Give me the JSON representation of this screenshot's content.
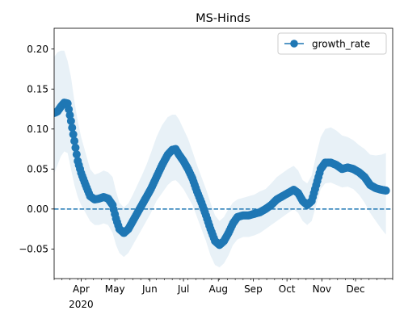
{
  "chart_data": {
    "type": "line",
    "title": "MS-Hinds",
    "xlabel": "",
    "ylabel": "",
    "x_range": [
      "2020-03-08",
      "2021-01-03"
    ],
    "ylim": [
      -0.087,
      0.226
    ],
    "grid": false,
    "legend": {
      "placement": "top-right",
      "entries": [
        "growth_rate"
      ]
    },
    "x_ticks": [
      {
        "date": "2020-04-01",
        "label": "Apr",
        "sublabel": "2020"
      },
      {
        "date": "2020-05-01",
        "label": "May"
      },
      {
        "date": "2020-06-01",
        "label": "Jun"
      },
      {
        "date": "2020-07-01",
        "label": "Jul"
      },
      {
        "date": "2020-08-01",
        "label": "Aug"
      },
      {
        "date": "2020-09-01",
        "label": "Sep"
      },
      {
        "date": "2020-10-01",
        "label": "Oct"
      },
      {
        "date": "2020-11-01",
        "label": "Nov"
      },
      {
        "date": "2020-12-01",
        "label": "Dec"
      }
    ],
    "y_ticks": [
      {
        "value": 0.2,
        "label": "0.20"
      },
      {
        "value": 0.15,
        "label": "0.15"
      },
      {
        "value": 0.1,
        "label": "0.10"
      },
      {
        "value": 0.05,
        "label": "0.05"
      },
      {
        "value": 0.0,
        "label": "0.00"
      },
      {
        "value": -0.05,
        "label": "−0.05"
      }
    ],
    "reference_line": {
      "y": 0.0,
      "style": "dashed"
    },
    "series": [
      {
        "name": "growth_rate",
        "color": "#1f77b4",
        "band_color": "#1f77b4",
        "band_opacity": 0.1,
        "points": [
          {
            "x": "2020-03-08",
            "y": 0.12,
            "lo": 0.045,
            "hi": 0.19
          },
          {
            "x": "2020-03-11",
            "y": 0.122,
            "lo": 0.055,
            "hi": 0.196
          },
          {
            "x": "2020-03-14",
            "y": 0.128,
            "lo": 0.066,
            "hi": 0.198
          },
          {
            "x": "2020-03-17",
            "y": 0.133,
            "lo": 0.072,
            "hi": 0.198
          },
          {
            "x": "2020-03-20",
            "y": 0.132,
            "lo": 0.07,
            "hi": 0.185
          },
          {
            "x": "2020-03-23",
            "y": 0.11,
            "lo": 0.05,
            "hi": 0.165
          },
          {
            "x": "2020-03-26",
            "y": 0.085,
            "lo": 0.03,
            "hi": 0.135
          },
          {
            "x": "2020-03-29",
            "y": 0.06,
            "lo": 0.015,
            "hi": 0.11
          },
          {
            "x": "2020-04-01",
            "y": 0.045,
            "lo": 0.005,
            "hi": 0.09
          },
          {
            "x": "2020-04-05",
            "y": 0.03,
            "lo": -0.005,
            "hi": 0.07
          },
          {
            "x": "2020-04-09",
            "y": 0.016,
            "lo": -0.015,
            "hi": 0.05
          },
          {
            "x": "2020-04-13",
            "y": 0.012,
            "lo": -0.02,
            "hi": 0.043
          },
          {
            "x": "2020-04-17",
            "y": 0.013,
            "lo": -0.02,
            "hi": 0.045
          },
          {
            "x": "2020-04-21",
            "y": 0.015,
            "lo": -0.018,
            "hi": 0.048
          },
          {
            "x": "2020-04-25",
            "y": 0.013,
            "lo": -0.02,
            "hi": 0.046
          },
          {
            "x": "2020-04-29",
            "y": 0.005,
            "lo": -0.03,
            "hi": 0.04
          },
          {
            "x": "2020-05-02",
            "y": -0.012,
            "lo": -0.045,
            "hi": 0.022
          },
          {
            "x": "2020-05-05",
            "y": -0.025,
            "lo": -0.055,
            "hi": 0.008
          },
          {
            "x": "2020-05-09",
            "y": -0.03,
            "lo": -0.06,
            "hi": 0.002
          },
          {
            "x": "2020-05-13",
            "y": -0.025,
            "lo": -0.055,
            "hi": 0.007
          },
          {
            "x": "2020-05-17",
            "y": -0.015,
            "lo": -0.045,
            "hi": 0.018
          },
          {
            "x": "2020-05-21",
            "y": -0.005,
            "lo": -0.035,
            "hi": 0.03
          },
          {
            "x": "2020-05-25",
            "y": 0.005,
            "lo": -0.025,
            "hi": 0.042
          },
          {
            "x": "2020-05-29",
            "y": 0.015,
            "lo": -0.015,
            "hi": 0.055
          },
          {
            "x": "2020-06-02",
            "y": 0.025,
            "lo": -0.005,
            "hi": 0.07
          },
          {
            "x": "2020-06-07",
            "y": 0.04,
            "lo": 0.01,
            "hi": 0.09
          },
          {
            "x": "2020-06-12",
            "y": 0.055,
            "lo": 0.02,
            "hi": 0.105
          },
          {
            "x": "2020-06-17",
            "y": 0.068,
            "lo": 0.03,
            "hi": 0.115
          },
          {
            "x": "2020-06-21",
            "y": 0.074,
            "lo": 0.035,
            "hi": 0.118
          },
          {
            "x": "2020-06-24",
            "y": 0.075,
            "lo": 0.036,
            "hi": 0.118
          },
          {
            "x": "2020-06-27",
            "y": 0.068,
            "lo": 0.032,
            "hi": 0.112
          },
          {
            "x": "2020-07-01",
            "y": 0.06,
            "lo": 0.025,
            "hi": 0.1
          },
          {
            "x": "2020-07-05",
            "y": 0.05,
            "lo": 0.015,
            "hi": 0.088
          },
          {
            "x": "2020-07-09",
            "y": 0.038,
            "lo": 0.005,
            "hi": 0.072
          },
          {
            "x": "2020-07-13",
            "y": 0.022,
            "lo": -0.01,
            "hi": 0.055
          },
          {
            "x": "2020-07-17",
            "y": 0.008,
            "lo": -0.025,
            "hi": 0.04
          },
          {
            "x": "2020-07-21",
            "y": -0.008,
            "lo": -0.04,
            "hi": 0.025
          },
          {
            "x": "2020-07-25",
            "y": -0.025,
            "lo": -0.058,
            "hi": 0.008
          },
          {
            "x": "2020-07-29",
            "y": -0.04,
            "lo": -0.07,
            "hi": -0.008
          },
          {
            "x": "2020-08-02",
            "y": -0.045,
            "lo": -0.073,
            "hi": -0.015
          },
          {
            "x": "2020-08-06",
            "y": -0.04,
            "lo": -0.068,
            "hi": -0.01
          },
          {
            "x": "2020-08-10",
            "y": -0.03,
            "lo": -0.058,
            "hi": 0.0
          },
          {
            "x": "2020-08-14",
            "y": -0.018,
            "lo": -0.045,
            "hi": 0.008
          },
          {
            "x": "2020-08-18",
            "y": -0.01,
            "lo": -0.038,
            "hi": 0.012
          },
          {
            "x": "2020-08-23",
            "y": -0.008,
            "lo": -0.035,
            "hi": 0.014
          },
          {
            "x": "2020-08-28",
            "y": -0.008,
            "lo": -0.035,
            "hi": 0.016
          },
          {
            "x": "2020-09-02",
            "y": -0.006,
            "lo": -0.033,
            "hi": 0.018
          },
          {
            "x": "2020-09-07",
            "y": -0.004,
            "lo": -0.03,
            "hi": 0.022
          },
          {
            "x": "2020-09-12",
            "y": 0.0,
            "lo": -0.025,
            "hi": 0.025
          },
          {
            "x": "2020-09-17",
            "y": 0.005,
            "lo": -0.02,
            "hi": 0.032
          },
          {
            "x": "2020-09-22",
            "y": 0.012,
            "lo": -0.015,
            "hi": 0.04
          },
          {
            "x": "2020-09-27",
            "y": 0.016,
            "lo": -0.01,
            "hi": 0.045
          },
          {
            "x": "2020-10-02",
            "y": 0.02,
            "lo": -0.005,
            "hi": 0.05
          },
          {
            "x": "2020-10-07",
            "y": 0.024,
            "lo": 0.0,
            "hi": 0.054
          },
          {
            "x": "2020-10-11",
            "y": 0.02,
            "lo": -0.005,
            "hi": 0.048
          },
          {
            "x": "2020-10-15",
            "y": 0.01,
            "lo": -0.015,
            "hi": 0.036
          },
          {
            "x": "2020-10-19",
            "y": 0.005,
            "lo": -0.02,
            "hi": 0.032
          },
          {
            "x": "2020-10-23",
            "y": 0.01,
            "lo": -0.015,
            "hi": 0.042
          },
          {
            "x": "2020-10-27",
            "y": 0.03,
            "lo": 0.005,
            "hi": 0.068
          },
          {
            "x": "2020-10-31",
            "y": 0.05,
            "lo": 0.025,
            "hi": 0.09
          },
          {
            "x": "2020-11-04",
            "y": 0.058,
            "lo": 0.032,
            "hi": 0.1
          },
          {
            "x": "2020-11-09",
            "y": 0.058,
            "lo": 0.033,
            "hi": 0.102
          },
          {
            "x": "2020-11-14",
            "y": 0.055,
            "lo": 0.03,
            "hi": 0.098
          },
          {
            "x": "2020-11-19",
            "y": 0.05,
            "lo": 0.027,
            "hi": 0.092
          },
          {
            "x": "2020-11-24",
            "y": 0.052,
            "lo": 0.028,
            "hi": 0.09
          },
          {
            "x": "2020-11-29",
            "y": 0.05,
            "lo": 0.025,
            "hi": 0.086
          },
          {
            "x": "2020-12-04",
            "y": 0.046,
            "lo": 0.018,
            "hi": 0.08
          },
          {
            "x": "2020-12-09",
            "y": 0.04,
            "lo": 0.008,
            "hi": 0.075
          },
          {
            "x": "2020-12-14",
            "y": 0.03,
            "lo": -0.005,
            "hi": 0.068
          },
          {
            "x": "2020-12-19",
            "y": 0.026,
            "lo": -0.015,
            "hi": 0.067
          },
          {
            "x": "2020-12-24",
            "y": 0.024,
            "lo": -0.025,
            "hi": 0.068
          },
          {
            "x": "2020-12-28",
            "y": 0.023,
            "lo": -0.032,
            "hi": 0.07
          }
        ]
      }
    ]
  }
}
